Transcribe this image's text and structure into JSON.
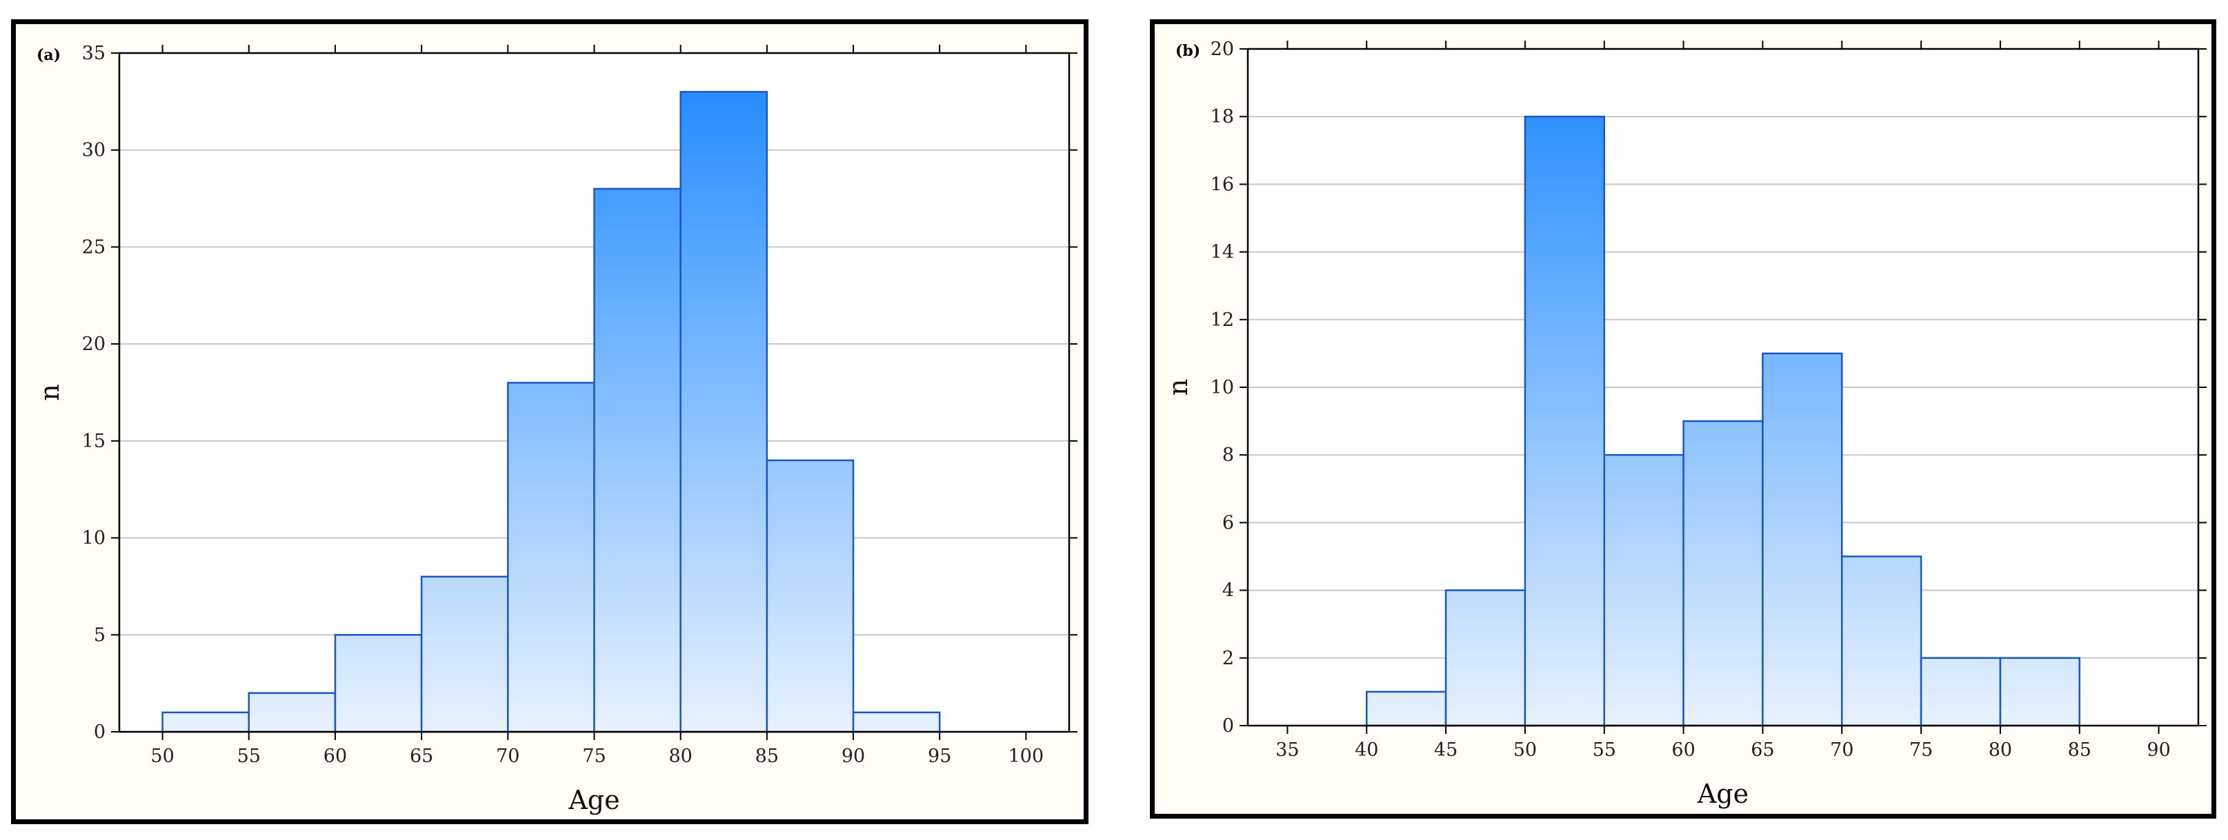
{
  "chart_data": [
    {
      "type": "bar",
      "panel_label": "(a)",
      "xlabel": "Age",
      "ylabel": "n",
      "bin_edges": [
        50,
        55,
        60,
        65,
        70,
        75,
        80,
        85,
        90,
        95
      ],
      "values": [
        1,
        2,
        5,
        8,
        18,
        28,
        33,
        14,
        1
      ],
      "xlim": [
        47.5,
        102.5
      ],
      "ylim": [
        0,
        35
      ],
      "xticks": [
        50,
        55,
        60,
        65,
        70,
        75,
        80,
        85,
        90,
        95,
        100
      ],
      "yticks": [
        0,
        5,
        10,
        15,
        20,
        25,
        30,
        35
      ],
      "grid": true,
      "bar_color_top": "#1a87ff",
      "bar_color_bottom": "#e8f2fd",
      "bar_edge": "#1a56c4"
    },
    {
      "type": "bar",
      "panel_label": "(b)",
      "xlabel": "Age",
      "ylabel": "n",
      "bin_edges": [
        40,
        45,
        50,
        55,
        60,
        65,
        70,
        75,
        80,
        85
      ],
      "values": [
        1,
        4,
        18,
        8,
        9,
        11,
        5,
        2,
        2
      ],
      "xlim": [
        32.5,
        92.5
      ],
      "ylim": [
        0,
        20
      ],
      "xticks": [
        35,
        40,
        45,
        50,
        55,
        60,
        65,
        70,
        75,
        80,
        85,
        90
      ],
      "yticks": [
        0,
        2,
        4,
        6,
        8,
        10,
        12,
        14,
        16,
        18,
        20
      ],
      "grid": true,
      "bar_color_top": "#1a87ff",
      "bar_color_bottom": "#e8f2fd",
      "bar_edge": "#1a56c4"
    }
  ]
}
